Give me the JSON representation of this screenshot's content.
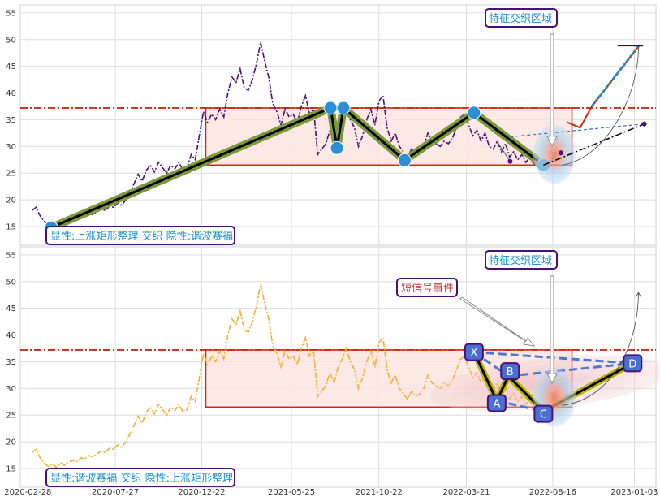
{
  "colors": {
    "panel_border": "#d0d0d0",
    "grid": "#dcdcdc",
    "hline": "#cc2a0e",
    "rect_edge": "#cc2a0e",
    "rect_fill": "#fbe3de",
    "top_series": "#4b0f7a",
    "bottom_series": "#f0b035",
    "pattern_outer": "#7a9a3b",
    "pattern_inner": "#000000",
    "point_blue": "#2b8fd6",
    "annot_text": "#1a8fd0",
    "annot_border": "#4b0f7a",
    "signal_text": "#c23a3a",
    "xabcd_fill": "#4a6fd0",
    "xabcd_dash": "#4a78d6"
  },
  "annotations": {
    "top_label": "显性:上涨矩形整理 交织 隐性:谐波赛福",
    "bottom_label": "显性:谐波赛福 交织 隐性:上涨矩形整理",
    "top_callout": "特征交织区域",
    "bottom_callout": "特征交织区域",
    "signal_callout": "短信号事件",
    "xabcd_labels": [
      "X",
      "A",
      "B",
      "C",
      "D"
    ]
  },
  "chart_data": {
    "type": "line",
    "x_tick_labels": [
      "2020-02-28",
      "2020-07-27",
      "2020-12-22",
      "2021-05-25",
      "2021-10-22",
      "2022-03-21",
      "2022-08-16",
      "2023-01-03"
    ],
    "y_ticks": [
      15,
      20,
      25,
      30,
      35,
      40,
      45,
      50,
      55
    ],
    "ylim": [
      11.5,
      56.5
    ],
    "xlim": [
      "2020-02-15",
      "2023-02-09"
    ],
    "horizontal_line": 37.2,
    "rectangle": {
      "x_start": "2020-12-29",
      "x_end": "2022-09-18",
      "y_low": 26.5,
      "y_high": 37.2
    },
    "series_price": [
      [
        "2020-03-06",
        18.0
      ],
      [
        "2020-03-13",
        18.6
      ],
      [
        "2020-03-20",
        17.0
      ],
      [
        "2020-03-27",
        16.0
      ],
      [
        "2020-04-03",
        15.4
      ],
      [
        "2020-04-10",
        15.8
      ],
      [
        "2020-04-17",
        15.2
      ],
      [
        "2020-04-24",
        16.0
      ],
      [
        "2020-05-01",
        15.6
      ],
      [
        "2020-05-08",
        16.2
      ],
      [
        "2020-05-15",
        16.5
      ],
      [
        "2020-05-22",
        16.3
      ],
      [
        "2020-05-29",
        17.0
      ],
      [
        "2020-06-05",
        16.8
      ],
      [
        "2020-06-12",
        17.4
      ],
      [
        "2020-06-19",
        17.2
      ],
      [
        "2020-06-26",
        17.8
      ],
      [
        "2020-07-03",
        18.2
      ],
      [
        "2020-07-10",
        18.0
      ],
      [
        "2020-07-17",
        18.8
      ],
      [
        "2020-07-24",
        18.6
      ],
      [
        "2020-07-31",
        19.4
      ],
      [
        "2020-08-07",
        19.0
      ],
      [
        "2020-08-14",
        20.0
      ],
      [
        "2020-08-21",
        21.5
      ],
      [
        "2020-08-28",
        23.0
      ],
      [
        "2020-09-04",
        24.8
      ],
      [
        "2020-09-11",
        23.5
      ],
      [
        "2020-09-18",
        25.5
      ],
      [
        "2020-09-25",
        26.5
      ],
      [
        "2020-10-02",
        25.2
      ],
      [
        "2020-10-09",
        27.0
      ],
      [
        "2020-10-16",
        26.0
      ],
      [
        "2020-10-23",
        25.0
      ],
      [
        "2020-10-30",
        26.5
      ],
      [
        "2020-11-06",
        25.8
      ],
      [
        "2020-11-13",
        27.0
      ],
      [
        "2020-11-20",
        25.5
      ],
      [
        "2020-11-27",
        26.0
      ],
      [
        "2020-12-04",
        28.5
      ],
      [
        "2020-12-11",
        27.5
      ],
      [
        "2020-12-18",
        32.0
      ],
      [
        "2020-12-25",
        36.5
      ],
      [
        "2021-01-01",
        34.5
      ],
      [
        "2021-01-08",
        36.0
      ],
      [
        "2021-01-15",
        35.0
      ],
      [
        "2021-01-22",
        37.0
      ],
      [
        "2021-01-29",
        35.5
      ],
      [
        "2021-02-05",
        40.0
      ],
      [
        "2021-02-12",
        43.0
      ],
      [
        "2021-02-19",
        42.0
      ],
      [
        "2021-02-26",
        44.5
      ],
      [
        "2021-03-05",
        41.0
      ],
      [
        "2021-03-12",
        40.5
      ],
      [
        "2021-03-19",
        42.5
      ],
      [
        "2021-03-26",
        45.5
      ],
      [
        "2021-04-02",
        49.5
      ],
      [
        "2021-04-09",
        46.0
      ],
      [
        "2021-04-16",
        43.0
      ],
      [
        "2021-04-23",
        38.0
      ],
      [
        "2021-04-30",
        36.5
      ],
      [
        "2021-05-07",
        34.0
      ],
      [
        "2021-05-14",
        37.0
      ],
      [
        "2021-05-21",
        35.5
      ],
      [
        "2021-05-28",
        36.0
      ],
      [
        "2021-06-04",
        34.5
      ],
      [
        "2021-06-11",
        37.5
      ],
      [
        "2021-06-18",
        39.5
      ],
      [
        "2021-06-25",
        36.0
      ],
      [
        "2021-07-02",
        37.0
      ],
      [
        "2021-07-09",
        28.5
      ],
      [
        "2021-07-16",
        29.5
      ],
      [
        "2021-07-23",
        30.5
      ],
      [
        "2021-07-30",
        33.0
      ],
      [
        "2021-08-06",
        31.0
      ],
      [
        "2021-08-13",
        34.0
      ],
      [
        "2021-08-20",
        35.5
      ],
      [
        "2021-08-27",
        37.5
      ],
      [
        "2021-09-03",
        35.0
      ],
      [
        "2021-09-10",
        33.5
      ],
      [
        "2021-09-17",
        30.0
      ],
      [
        "2021-09-24",
        32.0
      ],
      [
        "2021-10-01",
        35.0
      ],
      [
        "2021-10-08",
        37.0
      ],
      [
        "2021-10-15",
        34.0
      ],
      [
        "2021-10-22",
        38.5
      ],
      [
        "2021-10-29",
        39.5
      ],
      [
        "2021-11-05",
        33.5
      ],
      [
        "2021-11-12",
        31.0
      ],
      [
        "2021-11-19",
        32.5
      ],
      [
        "2021-11-26",
        30.0
      ],
      [
        "2021-12-03",
        29.0
      ],
      [
        "2021-12-10",
        28.0
      ],
      [
        "2021-12-17",
        29.5
      ],
      [
        "2021-12-24",
        28.5
      ],
      [
        "2021-12-31",
        29.0
      ],
      [
        "2022-01-07",
        30.0
      ],
      [
        "2022-01-14",
        32.5
      ],
      [
        "2022-01-21",
        31.0
      ],
      [
        "2022-01-28",
        30.5
      ],
      [
        "2022-02-04",
        30.0
      ],
      [
        "2022-02-11",
        31.0
      ],
      [
        "2022-02-18",
        30.5
      ],
      [
        "2022-02-25",
        31.5
      ],
      [
        "2022-03-04",
        33.5
      ],
      [
        "2022-03-11",
        35.5
      ],
      [
        "2022-03-18",
        36.0
      ],
      [
        "2022-03-25",
        34.0
      ],
      [
        "2022-04-01",
        32.0
      ],
      [
        "2022-04-08",
        33.0
      ],
      [
        "2022-04-15",
        31.0
      ],
      [
        "2022-04-22",
        32.5
      ],
      [
        "2022-04-29",
        30.0
      ],
      [
        "2022-05-06",
        29.5
      ],
      [
        "2022-05-13",
        31.0
      ],
      [
        "2022-05-20",
        29.0
      ],
      [
        "2022-05-27",
        30.5
      ],
      [
        "2022-06-03",
        28.0
      ],
      [
        "2022-06-10",
        29.0
      ],
      [
        "2022-06-17",
        27.5
      ],
      [
        "2022-06-24",
        28.5
      ],
      [
        "2022-07-01",
        27.0
      ],
      [
        "2022-07-08",
        28.0
      ],
      [
        "2022-07-15",
        26.5
      ],
      [
        "2022-07-22",
        27.5
      ],
      [
        "2022-07-29",
        27.0
      ],
      [
        "2022-08-05",
        26.5
      ],
      [
        "2022-08-12",
        27.5
      ],
      [
        "2022-08-19",
        28.0
      ]
    ],
    "top_rectangle_path": [
      [
        "2020-04-08",
        14.8
      ],
      [
        "2021-07-31",
        37.2
      ],
      [
        "2021-08-11",
        29.7
      ],
      [
        "2021-08-22",
        37.2
      ],
      [
        "2021-12-05",
        27.4
      ],
      [
        "2022-04-03",
        36.3
      ],
      [
        "2022-07-31",
        26.5
      ]
    ],
    "top_pivot_points": [
      [
        "2020-04-08",
        14.8
      ],
      [
        "2021-07-31",
        37.2
      ],
      [
        "2021-08-11",
        29.7
      ],
      [
        "2021-08-22",
        37.2
      ],
      [
        "2021-12-05",
        27.4
      ],
      [
        "2022-04-03",
        36.3
      ],
      [
        "2022-07-31",
        26.5
      ]
    ],
    "top_projection": [
      [
        "2022-09-10",
        34.5
      ],
      [
        "2022-10-02",
        33.5
      ],
      [
        "2022-10-22",
        37.5
      ],
      [
        "2023-01-12",
        49.0
      ]
    ],
    "xabcd": {
      "X": [
        "2022-04-03",
        36.8
      ],
      "A": [
        "2022-05-12",
        27.7
      ],
      "B": [
        "2022-06-01",
        32.3
      ],
      "C": [
        "2022-07-31",
        25.7
      ],
      "D": [
        "2022-12-31",
        34.7
      ]
    }
  }
}
